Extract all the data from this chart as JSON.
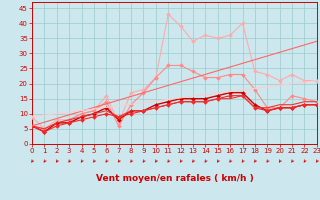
{
  "xlabel": "Vent moyen/en rafales ( km/h )",
  "background_color": "#cce8ee",
  "grid_color": "#99cccc",
  "x_ticks": [
    0,
    1,
    2,
    3,
    4,
    5,
    6,
    7,
    8,
    9,
    10,
    11,
    12,
    13,
    14,
    15,
    16,
    17,
    18,
    19,
    20,
    21,
    22,
    23
  ],
  "y_ticks": [
    0,
    5,
    10,
    15,
    20,
    25,
    30,
    35,
    40,
    45
  ],
  "xlim": [
    0,
    23
  ],
  "ylim": [
    0,
    47
  ],
  "series": [
    {
      "color": "#ffaaaa",
      "linewidth": 0.8,
      "marker": "D",
      "markersize": 2.0,
      "data_x": [
        0,
        1,
        2,
        3,
        4,
        5,
        6,
        7,
        8,
        9,
        10,
        11,
        12,
        13,
        14,
        15,
        16,
        17,
        18,
        19,
        20,
        21,
        22,
        23
      ],
      "data_y": [
        9,
        5,
        8,
        8,
        10,
        11,
        16,
        7,
        17,
        18,
        22,
        43,
        39,
        34,
        36,
        35,
        36,
        40,
        24,
        23,
        21,
        23,
        21,
        21
      ]
    },
    {
      "color": "#ff8888",
      "linewidth": 0.8,
      "marker": "D",
      "markersize": 2.0,
      "data_x": [
        0,
        1,
        2,
        3,
        4,
        5,
        6,
        7,
        8,
        9,
        10,
        11,
        12,
        13,
        14,
        15,
        16,
        17,
        18,
        19,
        20,
        21,
        22,
        23
      ],
      "data_y": [
        6,
        5,
        7,
        8,
        10,
        11,
        14,
        6,
        13,
        17,
        22,
        26,
        26,
        24,
        22,
        22,
        23,
        23,
        18,
        12,
        12,
        16,
        15,
        14
      ]
    },
    {
      "color": "#cc0000",
      "linewidth": 1.0,
      "marker": "D",
      "markersize": 2.0,
      "data_x": [
        0,
        1,
        2,
        3,
        4,
        5,
        6,
        7,
        8,
        9,
        10,
        11,
        12,
        13,
        14,
        15,
        16,
        17,
        18,
        19,
        20,
        21,
        22,
        23
      ],
      "data_y": [
        6,
        4,
        7,
        7,
        9,
        10,
        12,
        8,
        11,
        11,
        13,
        14,
        15,
        15,
        15,
        16,
        17,
        17,
        13,
        11,
        12,
        12,
        13,
        13
      ]
    },
    {
      "color": "#ff2222",
      "linewidth": 0.8,
      "marker": "D",
      "markersize": 2.0,
      "data_x": [
        0,
        1,
        2,
        3,
        4,
        5,
        6,
        7,
        8,
        9,
        10,
        11,
        12,
        13,
        14,
        15,
        16,
        17,
        18,
        19,
        20,
        21,
        22,
        23
      ],
      "data_y": [
        6,
        4,
        6,
        7,
        8,
        9,
        10,
        9,
        10,
        11,
        12,
        13,
        14,
        14,
        14,
        15,
        16,
        16,
        12,
        11,
        12,
        12,
        13,
        13
      ]
    },
    {
      "color": "#ee3333",
      "linewidth": 0.8,
      "marker": null,
      "data_x": [
        0,
        1,
        2,
        3,
        4,
        5,
        6,
        7,
        8,
        9,
        10,
        11,
        12,
        13,
        14,
        15,
        16,
        17,
        18,
        19,
        20,
        21,
        22,
        23
      ],
      "data_y": [
        6,
        5,
        7,
        8,
        9,
        10,
        11,
        9,
        11,
        11,
        12,
        13,
        14,
        14,
        14,
        15,
        15,
        16,
        12,
        12,
        13,
        13,
        14,
        14
      ]
    },
    {
      "color": "#ff6666",
      "linewidth": 0.8,
      "marker": null,
      "data_x": [
        0,
        23
      ],
      "data_y": [
        6,
        34
      ]
    },
    {
      "color": "#ffcccc",
      "linewidth": 0.8,
      "marker": null,
      "data_x": [
        0,
        23
      ],
      "data_y": [
        9,
        21
      ]
    }
  ],
  "wind_arrow_color": "#cc0000",
  "xlabel_fontsize": 6.5,
  "xlabel_bold": true,
  "tick_fontsize": 5,
  "tick_color": "#cc0000"
}
